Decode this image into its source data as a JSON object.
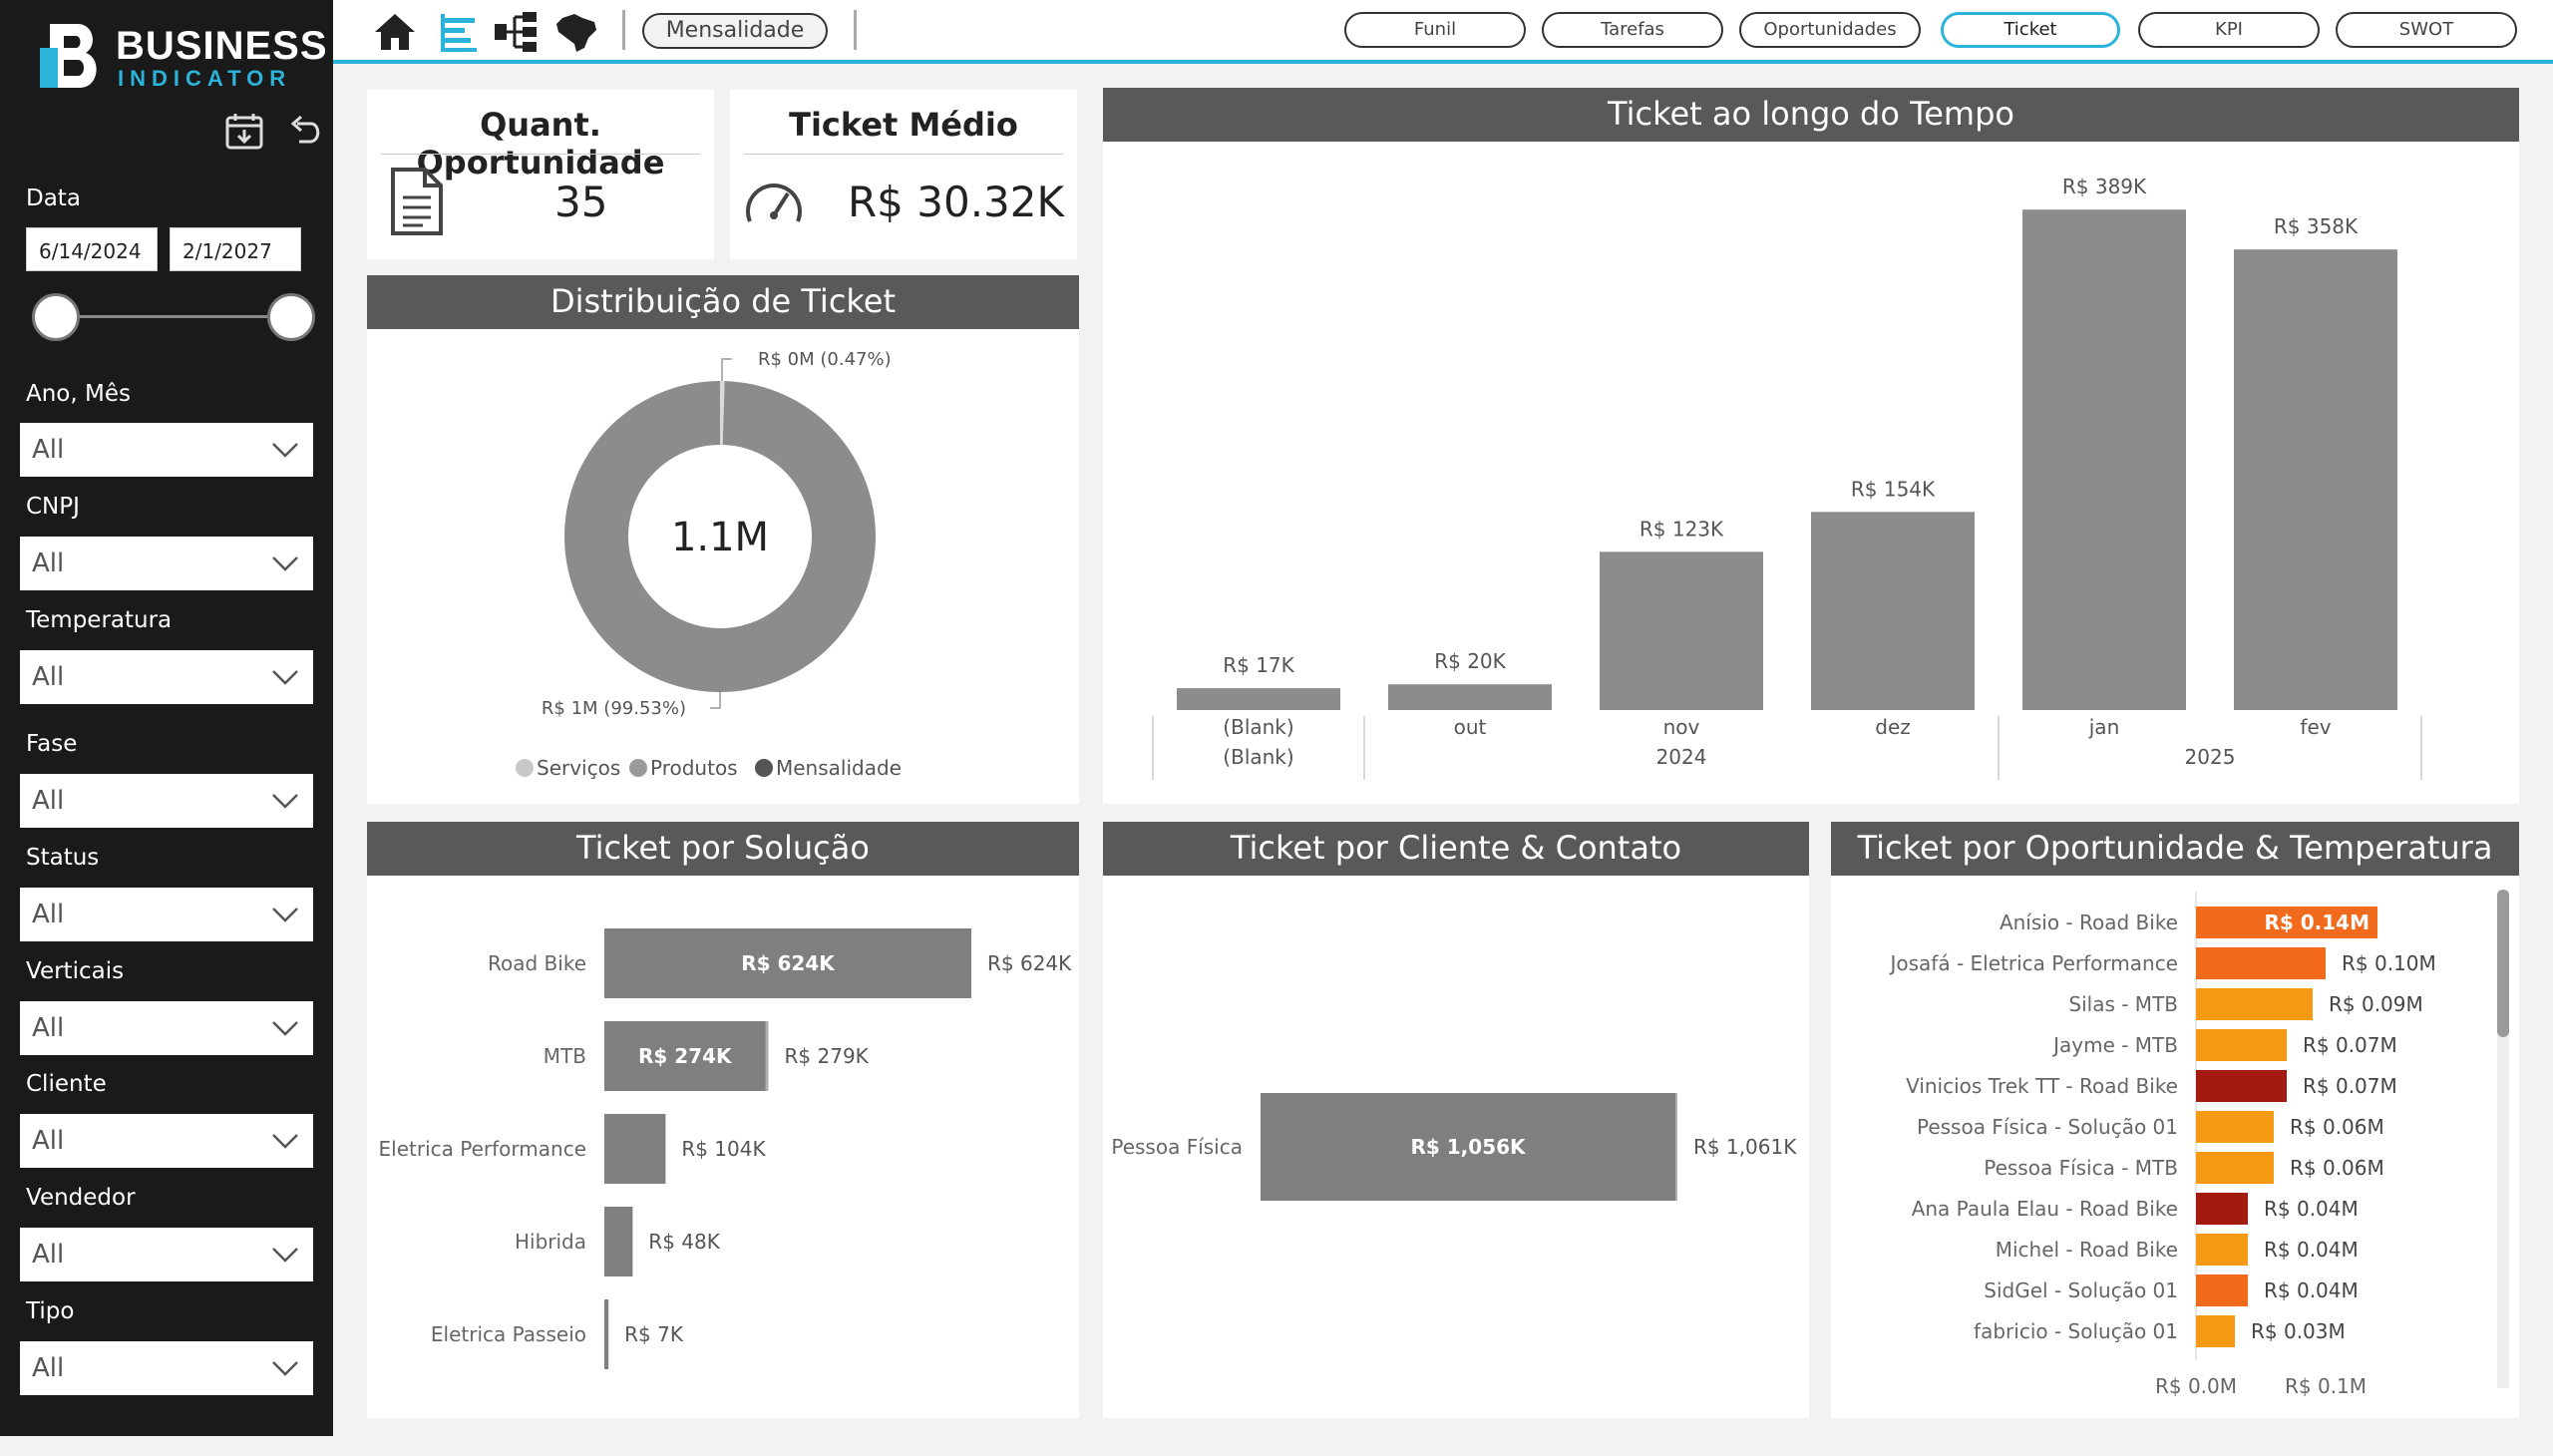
{
  "brand": {
    "line1": "BUSINESS",
    "line2": "INDICATOR"
  },
  "sidebar": {
    "data_label": "Data",
    "date_start": "6/14/2024",
    "date_end": "2/1/2027",
    "filters": [
      {
        "label": "Ano, Mês",
        "value": "All"
      },
      {
        "label": "CNPJ",
        "value": "All"
      },
      {
        "label": "Temperatura",
        "value": "All"
      },
      {
        "label": "Fase",
        "value": "All"
      },
      {
        "label": "Status",
        "value": "All"
      },
      {
        "label": "Verticais",
        "value": "All"
      },
      {
        "label": "Cliente",
        "value": "All"
      },
      {
        "label": "Vendedor",
        "value": "All"
      },
      {
        "label": "Tipo",
        "value": "All"
      }
    ]
  },
  "topbar": {
    "current_page": "Mensalidade",
    "pages": [
      "Funil",
      "Tarefas",
      "Oportunidades",
      "Ticket",
      "KPI",
      "SWOT"
    ],
    "active_page": "Ticket"
  },
  "kpis": {
    "opportunities": {
      "title": "Quant. Oportunidade",
      "value": "35"
    },
    "ticket": {
      "title": "Ticket Médio",
      "value": "R$ 30.32K"
    }
  },
  "colors": {
    "accent": "#2bb3d9",
    "bar_gray": "#8c8c8c",
    "header_gray": "#595959",
    "hot": "#a31a10",
    "warm": "#f26b1d",
    "mild": "#f59a12"
  },
  "chart_data": [
    {
      "type": "pie",
      "title": "Distribuição de Ticket",
      "center_label": "1.1M",
      "slices": [
        {
          "label": "R$ 0M (0.47%)",
          "percent": 0.47
        },
        {
          "label": "R$ 1M (99.53%)",
          "percent": 99.53
        }
      ],
      "legend": [
        "Serviços",
        "Produtos",
        "Mensalidade"
      ],
      "legend_placement": "bottom"
    },
    {
      "type": "bar",
      "title": "Ticket ao longo do Tempo",
      "categories": [
        "(Blank)",
        "out",
        "nov",
        "dez",
        "jan",
        "fev"
      ],
      "groups": [
        {
          "label": "(Blank)",
          "span": 1
        },
        {
          "label": "2024",
          "span": 3
        },
        {
          "label": "2025",
          "span": 2
        }
      ],
      "values": [
        17,
        20,
        123,
        154,
        389,
        358
      ],
      "data_labels": [
        "R$ 17K",
        "R$ 20K",
        "R$ 123K",
        "R$ 154K",
        "R$ 389K",
        "R$ 358K"
      ],
      "unit": "R$ K",
      "ylim": [
        0,
        400
      ]
    },
    {
      "type": "bar",
      "orientation": "horizontal",
      "title": "Ticket por Solução",
      "categories": [
        "Road Bike",
        "MTB",
        "Eletrica Performance",
        "Hibrida",
        "Eletrica Passeio"
      ],
      "values": [
        624,
        274,
        104,
        48,
        7
      ],
      "totals": [
        624,
        279,
        104,
        48,
        7
      ],
      "inner_labels": [
        "R$ 624K",
        "R$ 274K",
        "",
        "",
        ""
      ],
      "total_labels": [
        "R$ 624K",
        "R$ 279K",
        "R$ 104K",
        "R$ 48K",
        "R$ 7K"
      ],
      "unit": "R$ K"
    },
    {
      "type": "bar",
      "orientation": "horizontal",
      "title": "Ticket por Cliente & Contato",
      "categories": [
        "Pessoa Física"
      ],
      "values": [
        1056
      ],
      "totals": [
        1061
      ],
      "inner_labels": [
        "R$ 1,056K"
      ],
      "total_labels": [
        "R$ 1,061K"
      ],
      "unit": "R$ K"
    },
    {
      "type": "bar",
      "orientation": "horizontal",
      "title": "Ticket por Oportunidade & Temperatura",
      "categories": [
        "Anísio - Road Bike",
        "Josafá - Eletrica Performance",
        "Silas - MTB",
        "Jayme - MTB",
        "Vinicios Trek TT - Road Bike",
        "Pessoa Física - Solução 01",
        "Pessoa Física - MTB",
        "Ana Paula Elau - Road Bike",
        "Michel - Road Bike",
        "SidGel - Solução 01",
        "fabricio - Solução 01"
      ],
      "values": [
        0.14,
        0.1,
        0.09,
        0.07,
        0.07,
        0.06,
        0.06,
        0.04,
        0.04,
        0.04,
        0.03
      ],
      "labels": [
        "R$ 0.14M",
        "R$ 0.10M",
        "R$ 0.09M",
        "R$ 0.07M",
        "R$ 0.07M",
        "R$ 0.06M",
        "R$ 0.06M",
        "R$ 0.04M",
        "R$ 0.04M",
        "R$ 0.04M",
        "R$ 0.03M"
      ],
      "bar_colors": [
        "#f26b1d",
        "#f26b1d",
        "#f59a12",
        "#f59a12",
        "#a31a10",
        "#f59a12",
        "#f59a12",
        "#a31a10",
        "#f59a12",
        "#f26b1d",
        "#f59a12"
      ],
      "x_ticks": [
        "R$ 0.0M",
        "R$ 0.1M"
      ],
      "xlim": [
        0,
        0.2
      ],
      "unit": "R$ M"
    }
  ]
}
